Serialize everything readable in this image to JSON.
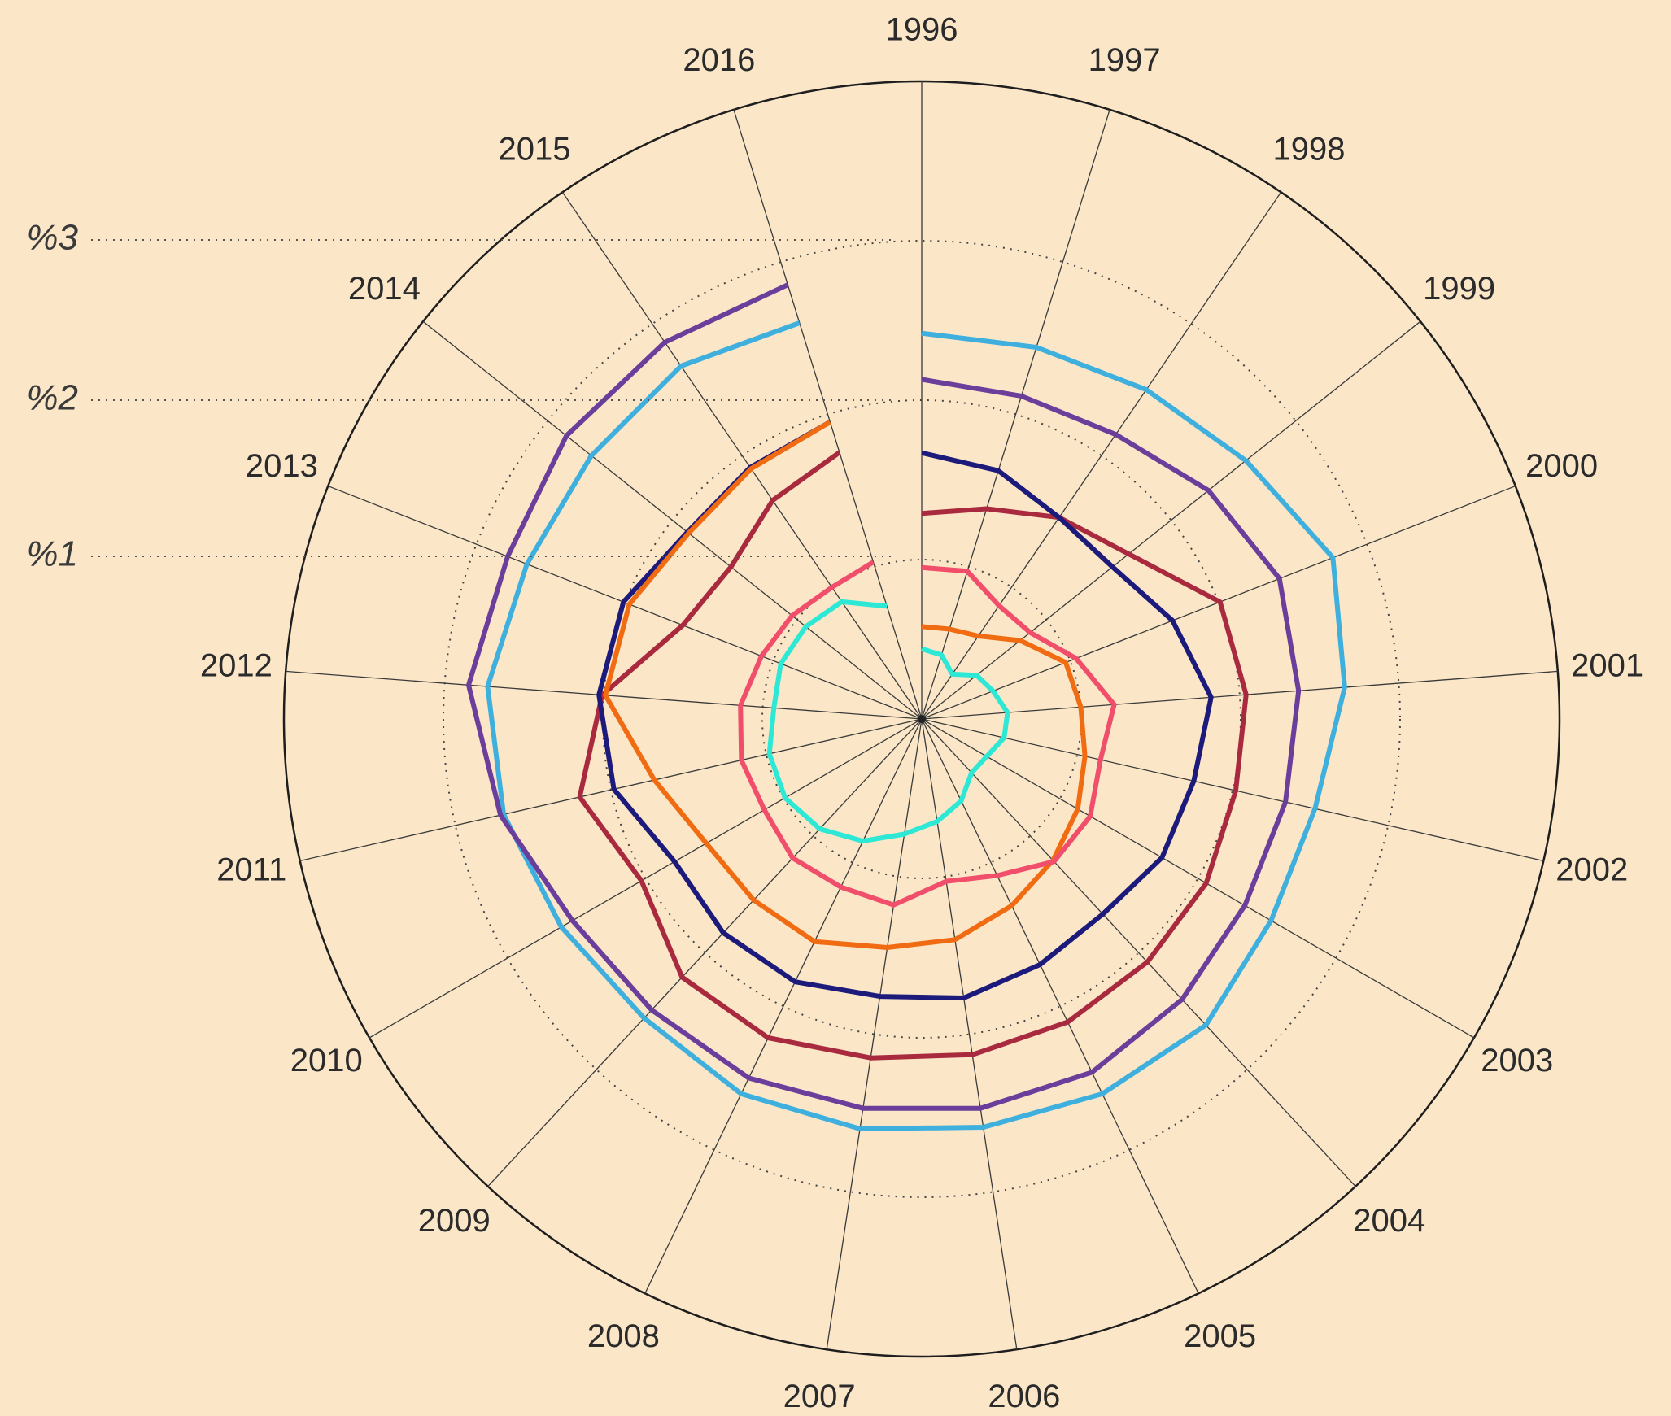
{
  "chart_data": {
    "type": "radar-line",
    "title": "",
    "categories": [
      "1996",
      "1997",
      "1998",
      "1999",
      "2000",
      "2001",
      "2002",
      "2003",
      "2004",
      "2005",
      "2006",
      "2007",
      "2008",
      "2009",
      "2010",
      "2011",
      "2012",
      "2013",
      "2014",
      "2015",
      "2016"
    ],
    "radial_tick_labels": [
      "%1",
      "%2",
      "%3"
    ],
    "radial_tick_values": [
      1,
      2,
      3
    ],
    "rlim": [
      0,
      4
    ],
    "grid": true,
    "series": [
      {
        "color": "#3fb0de",
        "values": [
          2.42,
          2.44,
          2.5,
          2.6,
          2.77,
          2.66,
          2.53,
          2.53,
          2.62,
          2.61,
          2.59,
          2.6,
          2.61,
          2.56,
          2.61,
          2.69,
          2.73,
          2.66,
          2.65,
          2.68,
          2.6
        ]
      },
      {
        "color": "#6a3e9a",
        "values": [
          2.13,
          2.12,
          2.16,
          2.3,
          2.41,
          2.37,
          2.34,
          2.34,
          2.4,
          2.46,
          2.47,
          2.47,
          2.5,
          2.49,
          2.53,
          2.71,
          2.85,
          2.79,
          2.85,
          2.86,
          2.85
        ]
      },
      {
        "color": "#a92a3e",
        "values": [
          1.29,
          1.38,
          1.53,
          1.66,
          2.01,
          2.04,
          2.02,
          2.06,
          2.08,
          2.11,
          2.13,
          2.15,
          2.22,
          2.21,
          2.03,
          2.2,
          2.01,
          1.61,
          1.53,
          1.66,
          1.75
        ]
      },
      {
        "color": "#1c1a7a",
        "values": [
          1.67,
          1.63,
          1.53,
          1.53,
          1.69,
          1.82,
          1.75,
          1.74,
          1.67,
          1.71,
          1.77,
          1.76,
          1.83,
          1.83,
          1.79,
          1.98,
          2.03,
          2.01,
          1.88,
          1.91,
          1.95
        ]
      },
      {
        "color": "#f06b12",
        "values": [
          0.58,
          0.59,
          0.63,
          0.79,
          0.97,
          1.0,
          1.05,
          1.13,
          1.21,
          1.3,
          1.4,
          1.45,
          1.55,
          1.55,
          1.56,
          1.72,
          1.99,
          1.97,
          1.87,
          1.9,
          1.95
        ]
      },
      {
        "color": "#f04e6a",
        "values": [
          0.95,
          0.97,
          0.86,
          0.87,
          1.04,
          1.21,
          1.15,
          1.22,
          1.22,
          1.09,
          1.03,
          1.18,
          1.17,
          1.19,
          1.14,
          1.16,
          1.14,
          1.08,
          1.04,
          1.0,
          1.03
        ]
      },
      {
        "color": "#2ee8d6",
        "values": [
          0.44,
          0.42,
          0.34,
          0.44,
          0.48,
          0.54,
          0.53,
          0.47,
          0.46,
          0.57,
          0.65,
          0.73,
          0.85,
          0.94,
          0.99,
          0.98,
          0.93,
          0.95,
          0.93,
          0.89,
          0.74
        ]
      }
    ]
  }
}
